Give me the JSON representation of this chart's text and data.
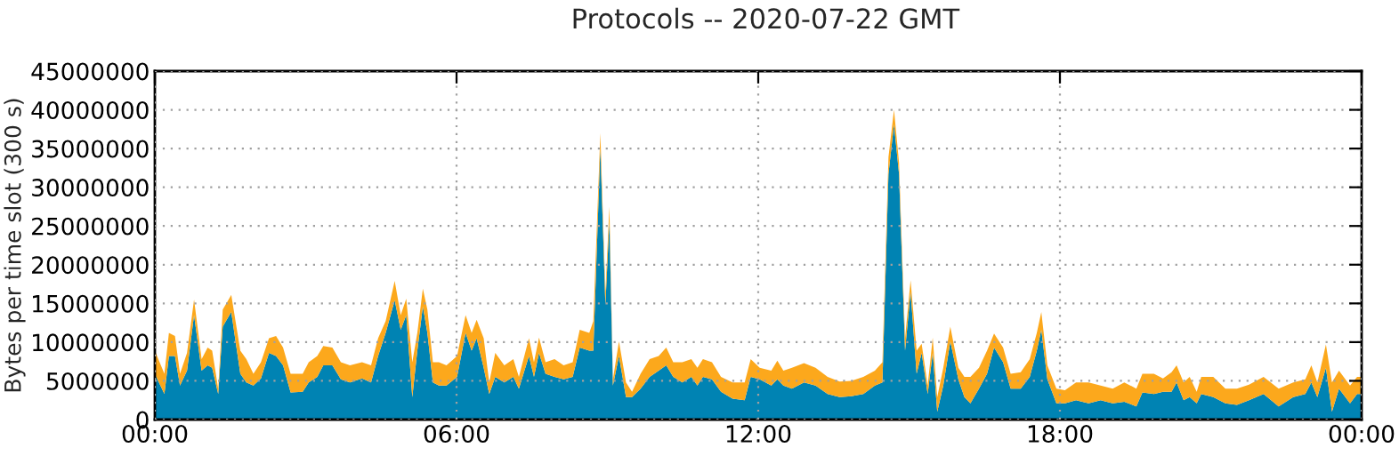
{
  "chart_data": {
    "type": "area",
    "stacked": true,
    "title": "Protocols -- 2020-07-22 GMT",
    "ylabel": "Bytes per time slot (300 s)",
    "x": [
      0.0,
      0.19,
      0.28,
      0.4,
      0.5,
      0.64,
      0.78,
      0.93,
      1.05,
      1.14,
      1.26,
      1.35,
      1.52,
      1.7,
      1.82,
      1.96,
      2.11,
      2.27,
      2.41,
      2.55,
      2.7,
      2.94,
      3.06,
      3.23,
      3.35,
      3.53,
      3.7,
      3.88,
      4.12,
      4.3,
      4.44,
      4.59,
      4.77,
      4.89,
      5.0,
      5.12,
      5.22,
      5.33,
      5.42,
      5.53,
      5.65,
      5.8,
      6.01,
      6.18,
      6.3,
      6.4,
      6.54,
      6.65,
      6.77,
      6.95,
      7.13,
      7.24,
      7.44,
      7.54,
      7.64,
      7.77,
      7.95,
      8.13,
      8.31,
      8.45,
      8.64,
      8.72,
      8.86,
      8.96,
      9.04,
      9.11,
      9.23,
      9.37,
      9.49,
      9.66,
      9.84,
      10.02,
      10.17,
      10.31,
      10.49,
      10.67,
      10.79,
      10.9,
      11.08,
      11.26,
      11.49,
      11.73,
      11.85,
      12.03,
      12.26,
      12.38,
      12.5,
      12.67,
      12.91,
      13.14,
      13.38,
      13.62,
      13.85,
      14.09,
      14.32,
      14.47,
      14.59,
      14.7,
      14.8,
      14.92,
      15.03,
      15.15,
      15.25,
      15.37,
      15.47,
      15.56,
      15.68,
      15.82,
      15.98,
      16.1,
      16.22,
      16.39,
      16.55,
      16.69,
      16.87,
      17.02,
      17.22,
      17.4,
      17.54,
      17.63,
      17.75,
      17.93,
      18.1,
      18.32,
      18.57,
      18.81,
      19.05,
      19.28,
      19.52,
      19.64,
      19.87,
      20.05,
      20.22,
      20.32,
      20.46,
      20.58,
      20.72,
      20.81,
      21.05,
      21.29,
      21.52,
      21.76,
      22.05,
      22.35,
      22.64,
      22.88,
      23.0,
      23.12,
      23.29,
      23.41,
      23.55,
      23.77,
      23.91,
      24.0
    ],
    "series": [
      {
        "color": "#0083b3",
        "values": [
          5900000,
          3300000,
          8200000,
          8200000,
          4400000,
          6300000,
          13500000,
          6300000,
          7000000,
          6700000,
          3300000,
          12000000,
          13900000,
          5900000,
          4800000,
          4400000,
          5300000,
          8600000,
          8200000,
          7000000,
          3500000,
          3600000,
          4800000,
          5500000,
          7000000,
          7000000,
          5200000,
          4800000,
          5300000,
          4800000,
          8200000,
          11200000,
          15400000,
          11600000,
          13500000,
          2900000,
          8900000,
          14600000,
          11200000,
          4800000,
          4400000,
          4400000,
          5500000,
          11200000,
          8900000,
          10500000,
          6700000,
          3300000,
          5500000,
          4800000,
          5500000,
          4000000,
          8200000,
          5500000,
          8600000,
          5900000,
          5500000,
          5200000,
          5500000,
          9300000,
          8900000,
          8900000,
          35100000,
          14800000,
          25600000,
          4400000,
          8200000,
          2900000,
          2900000,
          4000000,
          5500000,
          6300000,
          7000000,
          5500000,
          4800000,
          5500000,
          4400000,
          5500000,
          5200000,
          3600000,
          2700000,
          2500000,
          5500000,
          5200000,
          4400000,
          5200000,
          4400000,
          4000000,
          4800000,
          4400000,
          3300000,
          2900000,
          3000000,
          3300000,
          4400000,
          4800000,
          31700000,
          38100000,
          31700000,
          8900000,
          16500000,
          5900000,
          8600000,
          3300000,
          8600000,
          1000000,
          4400000,
          10100000,
          5200000,
          2900000,
          2100000,
          4000000,
          5900000,
          9300000,
          7400000,
          4000000,
          4000000,
          5500000,
          8900000,
          11600000,
          5200000,
          2100000,
          2100000,
          2500000,
          2100000,
          2500000,
          2100000,
          2300000,
          1700000,
          3500000,
          3300000,
          3600000,
          3600000,
          4800000,
          2500000,
          2900000,
          2100000,
          3300000,
          2900000,
          2100000,
          1900000,
          2500000,
          3300000,
          1700000,
          2900000,
          3300000,
          4800000,
          2900000,
          6700000,
          1000000,
          4000000,
          2100000,
          3300000,
          3300000
        ]
      },
      {
        "color": "#fca81c",
        "values": [
          3000000,
          2600000,
          3000000,
          2600000,
          1500000,
          2300000,
          2000000,
          1500000,
          2300000,
          2200000,
          700000,
          2200000,
          2200000,
          3000000,
          3000000,
          1500000,
          2100000,
          1900000,
          2600000,
          2300000,
          2400000,
          2300000,
          2600000,
          2700000,
          2500000,
          2300000,
          2200000,
          2200000,
          2100000,
          2200000,
          2300000,
          1500000,
          2500000,
          1900000,
          2100000,
          4500000,
          2300000,
          2300000,
          3000000,
          2600000,
          3000000,
          2600000,
          2700000,
          2300000,
          2300000,
          2400000,
          3800000,
          1500000,
          3100000,
          2200000,
          2300000,
          1500000,
          2300000,
          1900000,
          2000000,
          1500000,
          2300000,
          1800000,
          1900000,
          2300000,
          2300000,
          3800000,
          1900000,
          1600000,
          1900000,
          800000,
          1900000,
          1900000,
          700000,
          1900000,
          2300000,
          1900000,
          2300000,
          1900000,
          2600000,
          2300000,
          2300000,
          2300000,
          2200000,
          1900000,
          2100000,
          2300000,
          2300000,
          1500000,
          1900000,
          2400000,
          1900000,
          2700000,
          2500000,
          2300000,
          2200000,
          2000000,
          2000000,
          2200000,
          1900000,
          2600000,
          2200000,
          1900000,
          1500000,
          1600000,
          1500000,
          3000000,
          1200000,
          1100000,
          2000000,
          1900000,
          2300000,
          1900000,
          1500000,
          2600000,
          3400000,
          2700000,
          3000000,
          1800000,
          1900000,
          1900000,
          2100000,
          2300000,
          2300000,
          2300000,
          1800000,
          1900000,
          1700000,
          2300000,
          2700000,
          1900000,
          1900000,
          2500000,
          2300000,
          2400000,
          2600000,
          1700000,
          2500000,
          2200000,
          2300000,
          2600000,
          1500000,
          2200000,
          2600000,
          1900000,
          2100000,
          2000000,
          2200000,
          2300000,
          1900000,
          1900000,
          2200000,
          1900000,
          3000000,
          3800000,
          2300000,
          2300000,
          2200000,
          2200000
        ]
      }
    ],
    "xlim": [
      0,
      24
    ],
    "xticks": [
      {
        "value": 0,
        "label": "00:00"
      },
      {
        "value": 6,
        "label": "06:00"
      },
      {
        "value": 12,
        "label": "12:00"
      },
      {
        "value": 18,
        "label": "18:00"
      },
      {
        "value": 24,
        "label": "00:00"
      }
    ],
    "ylim": [
      0,
      45000000
    ],
    "yticks": [
      0,
      5000000,
      10000000,
      15000000,
      20000000,
      25000000,
      30000000,
      35000000,
      40000000,
      45000000
    ],
    "grid": true
  }
}
